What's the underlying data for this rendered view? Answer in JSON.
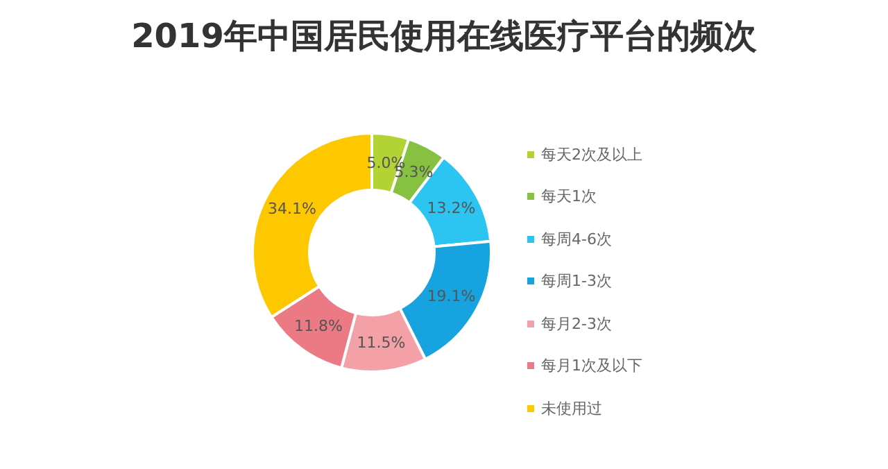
{
  "chart_data": {
    "type": "donut",
    "title": "2019年中国居民使用在线医疗平台的频次",
    "categories": [
      "每天2次及以上",
      "每天1次",
      "每周4-6次",
      "每周1-3次",
      "每月2-3次",
      "每月1次及以下",
      "未使用过"
    ],
    "values": [
      5.0,
      5.3,
      13.2,
      19.1,
      11.5,
      11.8,
      34.1
    ],
    "value_labels": [
      "5.0%",
      "5.3%",
      "13.2%",
      "19.1%",
      "11.5%",
      "11.8%",
      "34.1%"
    ],
    "colors": [
      "#b3d334",
      "#86c142",
      "#2cc4f0",
      "#16a3df",
      "#f3a0a6",
      "#ec7a85",
      "#fdc800"
    ],
    "legend": "right"
  }
}
